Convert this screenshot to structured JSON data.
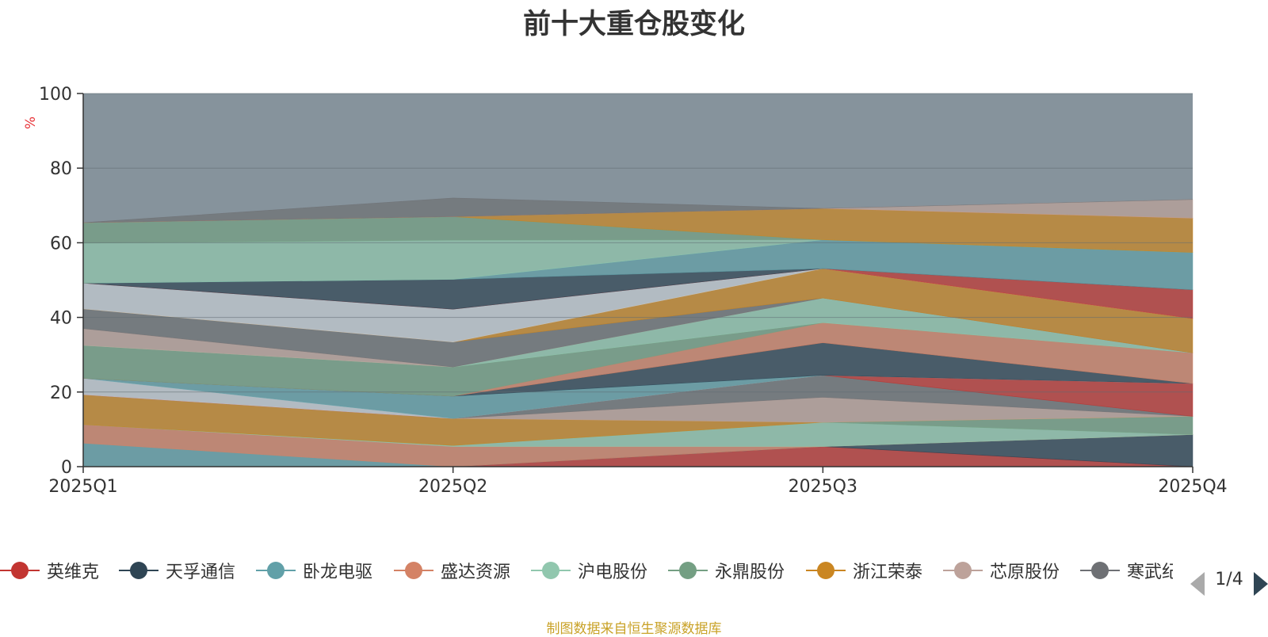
{
  "chart_data": {
    "type": "area",
    "stacked": true,
    "title": "前十大重仓股变化",
    "ylabel": "%",
    "ylim": [
      0,
      100
    ],
    "yticks": [
      0,
      20,
      40,
      60,
      80,
      100
    ],
    "grid": true,
    "categories": [
      "2025Q1",
      "2025Q2",
      "2025Q3",
      "2025Q4"
    ],
    "background_series_color": "#86939c",
    "series": [
      {
        "name": "英维克",
        "color": "#c23531",
        "values": [
          0,
          0,
          5.4,
          0
        ]
      },
      {
        "name": "天孚通信",
        "color": "#2f4554",
        "values": [
          0,
          0,
          0,
          8.6
        ]
      },
      {
        "name": "卧龙电驱",
        "color": "#61a0a8",
        "values": [
          6.3,
          0,
          0,
          0
        ]
      },
      {
        "name": "盛达资源",
        "color": "#d48265",
        "values": [
          5.0,
          5.4,
          0,
          0
        ]
      },
      {
        "name": "沪电股份",
        "color": "#91c7ae",
        "values": [
          0,
          0.3,
          6.5,
          0
        ]
      },
      {
        "name": "永鼎股份",
        "color": "#749f83",
        "values": [
          0,
          0,
          0,
          4.9
        ]
      },
      {
        "name": "浙江荣泰",
        "color": "#ca8622",
        "values": [
          8.0,
          7.2,
          0,
          0
        ]
      },
      {
        "name": "芯原股份",
        "color": "#bda29a",
        "values": [
          0,
          0,
          6.7,
          0
        ]
      },
      {
        "name": "寒武纪",
        "color": "#6e7074",
        "values": [
          0,
          0,
          5.9,
          0
        ]
      },
      {
        "name": "",
        "color": "#c23531",
        "values": [
          0,
          0,
          0,
          8.8
        ]
      },
      {
        "name": "",
        "color": "#c4ccd3",
        "values": [
          4.4,
          0,
          0,
          0
        ]
      },
      {
        "name": "",
        "color": "#61a0a8",
        "values": [
          0,
          6.0,
          0,
          0
        ]
      },
      {
        "name": "",
        "color": "#2f4554",
        "values": [
          0,
          0,
          8.7,
          0
        ]
      },
      {
        "name": "",
        "color": "#d48265",
        "values": [
          0,
          0,
          5.4,
          8.2
        ]
      },
      {
        "name": "",
        "color": "#749f83",
        "values": [
          8.8,
          7.8,
          0,
          0
        ]
      },
      {
        "name": "",
        "color": "#91c7ae",
        "values": [
          0,
          0,
          6.6,
          0
        ]
      },
      {
        "name": "",
        "color": "#bda29a",
        "values": [
          4.5,
          0,
          0,
          0
        ]
      },
      {
        "name": "",
        "color": "#6e7074",
        "values": [
          5.3,
          6.7,
          0,
          0
        ]
      },
      {
        "name": "",
        "color": "#ca8622",
        "values": [
          0,
          0,
          7.9,
          9.2
        ]
      },
      {
        "name": "",
        "color": "#c4ccd3",
        "values": [
          6.9,
          8.8,
          0,
          0
        ]
      },
      {
        "name": "",
        "color": "#c23531",
        "values": [
          0,
          0,
          0,
          7.7
        ]
      },
      {
        "name": "",
        "color": "#2f4554",
        "values": [
          0,
          8.0,
          0,
          0
        ]
      },
      {
        "name": "",
        "color": "#61a0a8",
        "values": [
          0,
          0,
          7.7,
          10.0
        ]
      },
      {
        "name": "",
        "color": "#91c7ae",
        "values": [
          10.7,
          10.5,
          0,
          0
        ]
      },
      {
        "name": "",
        "color": "#749f83",
        "values": [
          5.5,
          6.3,
          0,
          0
        ]
      },
      {
        "name": "",
        "color": "#ca8622",
        "values": [
          0,
          0,
          8.4,
          9.2
        ]
      },
      {
        "name": "",
        "color": "#d48265",
        "values": [
          0,
          0,
          0,
          0
        ]
      },
      {
        "name": "",
        "color": "#bda29a",
        "values": [
          0,
          0,
          0,
          5.0
        ]
      },
      {
        "name": "",
        "color": "#6e7074",
        "values": [
          0,
          5.0,
          0,
          0
        ]
      }
    ]
  },
  "legend": {
    "items": [
      {
        "label": "英维克",
        "color": "#c23531"
      },
      {
        "label": "天孚通信",
        "color": "#2f4554"
      },
      {
        "label": "卧龙电驱",
        "color": "#61a0a8"
      },
      {
        "label": "盛达资源",
        "color": "#d48265"
      },
      {
        "label": "沪电股份",
        "color": "#91c7ae"
      },
      {
        "label": "永鼎股份",
        "color": "#749f83"
      },
      {
        "label": "浙江荣泰",
        "color": "#ca8622"
      },
      {
        "label": "芯原股份",
        "color": "#bda29a"
      },
      {
        "label": "寒武纪",
        "color": "#6e7074"
      }
    ],
    "page": "1/4",
    "prev_icon": "triangle-left-icon",
    "next_icon": "triangle-right-icon"
  },
  "source_note": "制图数据来自恒生聚源数据库"
}
